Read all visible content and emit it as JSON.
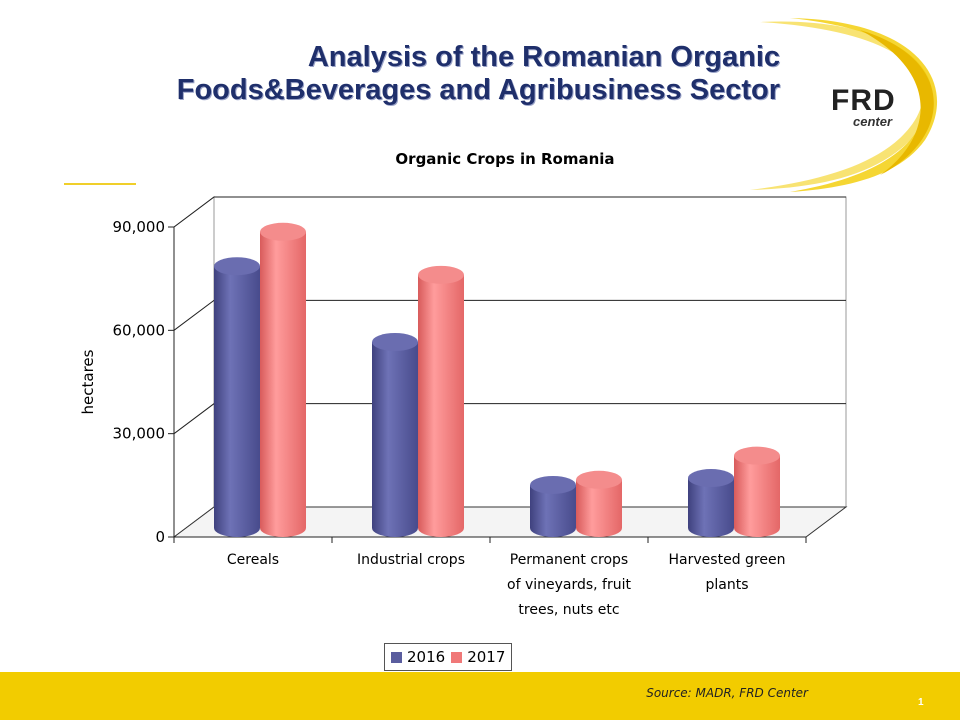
{
  "header": {
    "title_line1": "Analysis of the Romanian Organic",
    "title_line2": "Foods&Beverages and Agribusiness Sector",
    "logo_text": "FRD",
    "logo_subtext": "center"
  },
  "colors": {
    "series_2016": "#5a5d9e",
    "series_2017": "#f07878",
    "title": "#1f2f6b",
    "footer": "#f2cc00",
    "swoosh": "#f2cc00"
  },
  "chart_data": {
    "type": "bar",
    "title": "Organic Crops in Romania",
    "ylabel": "hectares",
    "xlabel": "",
    "categories": [
      "Cereals",
      "Industrial crops",
      "Permanent crops of vineyards, fruit trees, nuts etc",
      "Harvested green plants"
    ],
    "category_lines": [
      [
        "Cereals"
      ],
      [
        "Industrial crops"
      ],
      [
        "Permanent crops",
        "of vineyards, fruit",
        "trees, nuts etc"
      ],
      [
        "Harvested green",
        "plants"
      ]
    ],
    "series": [
      {
        "name": "2016",
        "values": [
          76000,
          54000,
          12500,
          14500
        ]
      },
      {
        "name": "2017",
        "values": [
          86000,
          73500,
          14000,
          21000
        ]
      }
    ],
    "ylim": [
      0,
      90000
    ],
    "yticks": [
      0,
      30000,
      60000,
      90000
    ],
    "ytick_labels": [
      "0",
      "30,000",
      "60,000",
      "90,000"
    ],
    "grid": true,
    "legend_position": "bottom"
  },
  "footer": {
    "source": "Source: MADR, FRD Center",
    "page_number": "1"
  }
}
